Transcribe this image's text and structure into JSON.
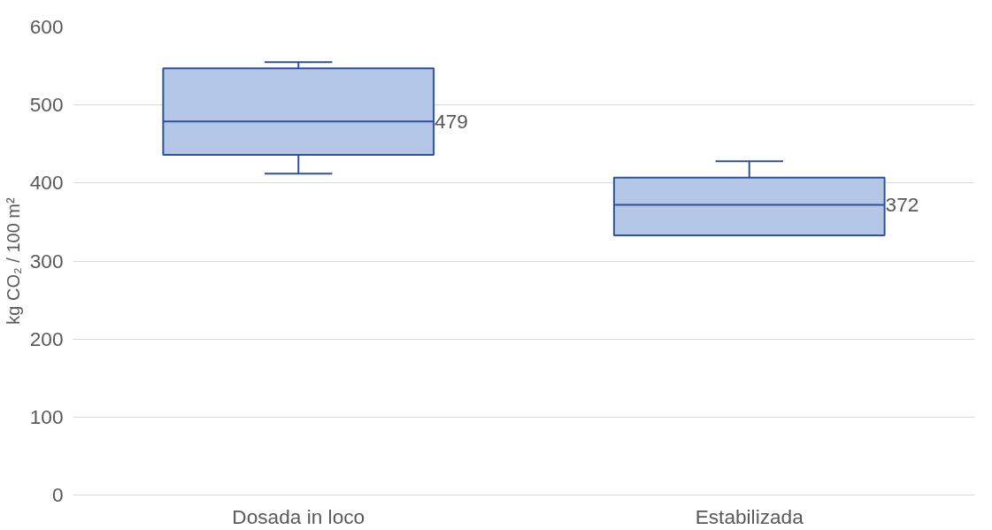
{
  "chart_data": {
    "type": "box",
    "ylabel": "kg CO₂ / 100 m²",
    "categories": [
      "Dosada in loco",
      "Estabilizada"
    ],
    "boxes": [
      {
        "low": 412,
        "q1": 436,
        "median": 479,
        "q3": 547,
        "high": 555
      },
      {
        "low": 333,
        "q1": 333,
        "median": 372,
        "q3": 407,
        "high": 428
      }
    ],
    "color": "#b4c7e7",
    "annotations": [
      "479",
      "372"
    ],
    "ylim": [
      0,
      600
    ],
    "yticks": [
      0,
      100,
      200,
      300,
      400,
      500,
      600
    ],
    "grid": "y"
  }
}
